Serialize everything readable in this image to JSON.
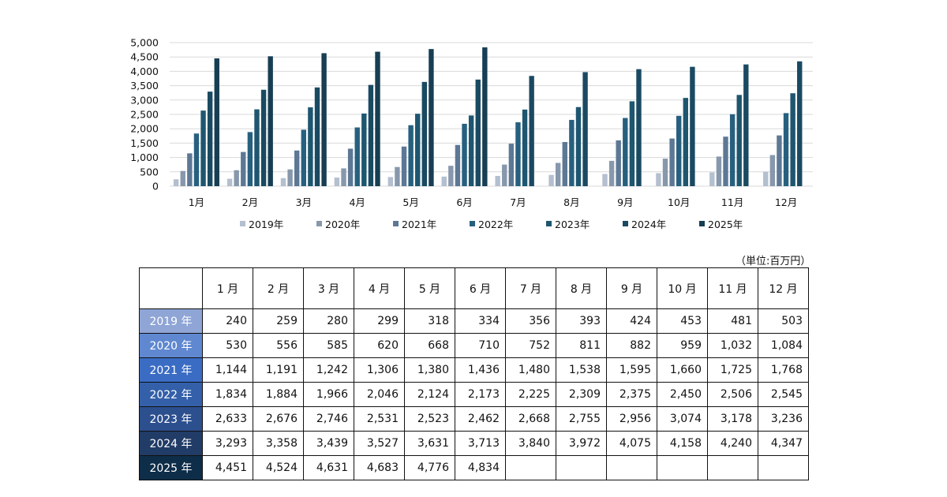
{
  "chart_data": {
    "type": "bar",
    "categories": [
      "1月",
      "2月",
      "3月",
      "4月",
      "5月",
      "6月",
      "7月",
      "8月",
      "9月",
      "10月",
      "11月",
      "12月"
    ],
    "series": [
      {
        "name": "2019年",
        "color": "#b4bfcf",
        "values": [
          240,
          259,
          280,
          299,
          318,
          334,
          356,
          393,
          424,
          453,
          481,
          503
        ]
      },
      {
        "name": "2020年",
        "color": "#8798ac",
        "values": [
          530,
          556,
          585,
          620,
          668,
          710,
          752,
          811,
          882,
          959,
          1032,
          1084
        ]
      },
      {
        "name": "2021年",
        "color": "#5d7895",
        "values": [
          1144,
          1191,
          1242,
          1306,
          1380,
          1436,
          1480,
          1538,
          1595,
          1660,
          1725,
          1768
        ]
      },
      {
        "name": "2022年",
        "color": "#27607f",
        "values": [
          1834,
          1884,
          1966,
          2046,
          2124,
          2173,
          2225,
          2309,
          2375,
          2450,
          2506,
          2545
        ]
      },
      {
        "name": "2023年",
        "color": "#1e5670",
        "values": [
          2633,
          2676,
          2746,
          2531,
          2523,
          2462,
          2668,
          2755,
          2956,
          3074,
          3178,
          3236
        ]
      },
      {
        "name": "2024年",
        "color": "#1a4a62",
        "values": [
          3293,
          3358,
          3439,
          3527,
          3631,
          3713,
          3840,
          3972,
          4075,
          4158,
          4240,
          4347
        ]
      },
      {
        "name": "2025年",
        "color": "#173e53",
        "values": [
          4451,
          4524,
          4631,
          4683,
          4776,
          4834,
          null,
          null,
          null,
          null,
          null,
          null
        ]
      }
    ],
    "ylim": [
      0,
      5000
    ],
    "yticks": [
      "0",
      "500",
      "1,000",
      "1,500",
      "2,000",
      "2,500",
      "3,000",
      "3,500",
      "4,000",
      "4,500",
      "5,000"
    ],
    "grid": true,
    "legend_position": "bottom",
    "xlabel": "",
    "ylabel": ""
  },
  "table": {
    "unit_label": "（単位:百万円）",
    "columns": [
      "1 月",
      "2 月",
      "3 月",
      "4 月",
      "5 月",
      "6 月",
      "7 月",
      "8 月",
      "9 月",
      "10 月",
      "11 月",
      "12 月"
    ],
    "rows": [
      {
        "label": "2019 年",
        "color": "#8fa5d6",
        "cells": [
          "240",
          "259",
          "280",
          "299",
          "318",
          "334",
          "356",
          "393",
          "424",
          "453",
          "481",
          "503"
        ]
      },
      {
        "label": "2020 年",
        "color": "#5f88d0",
        "cells": [
          "530",
          "556",
          "585",
          "620",
          "668",
          "710",
          "752",
          "811",
          "882",
          "959",
          "1,032",
          "1,084"
        ]
      },
      {
        "label": "2021 年",
        "color": "#3a6cc4",
        "cells": [
          "1,144",
          "1,191",
          "1,242",
          "1,306",
          "1,380",
          "1,436",
          "1,480",
          "1,538",
          "1,595",
          "1,660",
          "1,725",
          "1,768"
        ]
      },
      {
        "label": "2022 年",
        "color": "#3460aa",
        "cells": [
          "1,834",
          "1,884",
          "1,966",
          "2,046",
          "2,124",
          "2,173",
          "2,225",
          "2,309",
          "2,375",
          "2,450",
          "2,506",
          "2,545"
        ]
      },
      {
        "label": "2023 年",
        "color": "#2c4f8e",
        "cells": [
          "2,633",
          "2,676",
          "2,746",
          "2,531",
          "2,523",
          "2,462",
          "2,668",
          "2,755",
          "2,956",
          "3,074",
          "3,178",
          "3,236"
        ]
      },
      {
        "label": "2024 年",
        "color": "#213c66",
        "cells": [
          "3,293",
          "3,358",
          "3,439",
          "3,527",
          "3,631",
          "3,713",
          "3,840",
          "3,972",
          "4,075",
          "4,158",
          "4,240",
          "4,347"
        ]
      },
      {
        "label": "2025 年",
        "color": "#0e2d48",
        "cells": [
          "4,451",
          "4,524",
          "4,631",
          "4,683",
          "4,776",
          "4,834",
          "",
          "",
          "",
          "",
          "",
          ""
        ]
      }
    ]
  }
}
